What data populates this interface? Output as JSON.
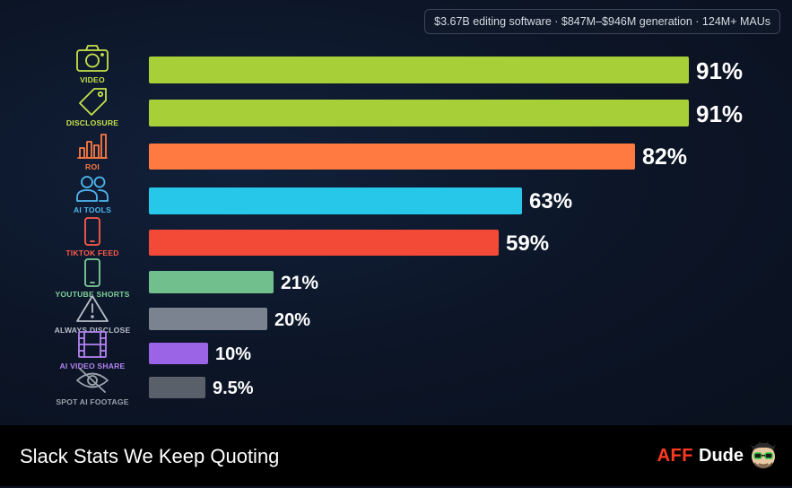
{
  "header": {
    "stats_pill": "$3.67B editing software · $847M–$946M generation · 124M+ MAUs"
  },
  "footer": {
    "title": "Slack Stats We Keep Quoting",
    "brand_aff": "AFF",
    "brand_dude": "Dude"
  },
  "chart_data": {
    "type": "bar",
    "orientation": "horizontal",
    "categories": [
      "VIDEO",
      "DISCLOSURE",
      "ROI",
      "AI TOOLS",
      "TIKTOK FEED",
      "YOUTUBE SHORTS",
      "ALWAYS DISCLOSE",
      "AI VIDEO SHARE",
      "SPOT AI FOOTAGE"
    ],
    "values": [
      91,
      91,
      82,
      63,
      59,
      21,
      20,
      10,
      9.5
    ],
    "value_labels": [
      "91%",
      "91%",
      "82%",
      "63%",
      "59%",
      "21%",
      "20%",
      "10%",
      "9.5%"
    ],
    "icons": [
      "camera-icon",
      "tag-icon",
      "bar-chart-icon",
      "users-icon",
      "smartphone-icon",
      "smartphone-icon",
      "warning-icon",
      "film-icon",
      "eye-off-icon"
    ],
    "colors": [
      "#a6cf38",
      "#a6cf38",
      "#ff7a40",
      "#27c7ea",
      "#f24a36",
      "#71bf8c",
      "#7b8290",
      "#9b63e6",
      "#5a606a"
    ],
    "label_colors": [
      "#c6e24a",
      "#c6e24a",
      "#ff7a40",
      "#4fb8ef",
      "#ff5a48",
      "#7fcf99",
      "#b8bec8",
      "#b383f2",
      "#9ba2ad"
    ],
    "xlim": [
      0,
      100
    ],
    "grid": false,
    "legend": "none"
  }
}
